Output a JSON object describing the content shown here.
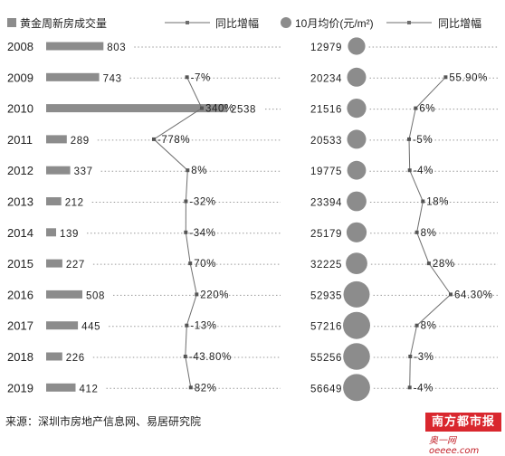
{
  "chart_data": {
    "type": "bar",
    "legend": [
      {
        "label": "黄金周新房成交量",
        "marker": "square"
      },
      {
        "label": "同比增幅",
        "marker": "line"
      },
      {
        "label": "10月均价(元/m²)",
        "marker": "circle"
      },
      {
        "label": "同比增幅",
        "marker": "line"
      }
    ],
    "categories": [
      "2008",
      "2009",
      "2010",
      "2011",
      "2012",
      "2013",
      "2014",
      "2015",
      "2016",
      "2017",
      "2018",
      "2019"
    ],
    "volume": {
      "values": [
        803,
        743,
        2538,
        289,
        337,
        212,
        139,
        227,
        508,
        445,
        226,
        412
      ],
      "labels": [
        "803",
        "743",
        "2538",
        "289",
        "337",
        "212",
        "139",
        "227",
        "508",
        "445",
        "226",
        "412"
      ]
    },
    "volume_yoy": {
      "values": [
        null,
        -7,
        340,
        -778,
        8,
        -32,
        -34,
        70,
        220,
        -13,
        -43.8,
        82
      ],
      "labels": [
        "",
        "-7%",
        "340%",
        "-778%",
        "8%",
        "-32%",
        "-34%",
        "70%",
        "220%",
        "-13%",
        "-43.80%",
        "82%"
      ]
    },
    "price": {
      "values": [
        12979,
        20234,
        21516,
        20533,
        19775,
        23394,
        25179,
        32225,
        52935,
        57216,
        55256,
        56649
      ],
      "labels": [
        "12979",
        "20234",
        "21516",
        "20533",
        "19775",
        "23394",
        "25179",
        "32225",
        "52935",
        "57216",
        "55256",
        "56649"
      ]
    },
    "price_yoy": {
      "values": [
        null,
        55.9,
        6,
        -5,
        -4,
        18,
        8,
        28,
        64.3,
        8,
        -3,
        -4
      ],
      "labels": [
        "",
        "55.90%",
        "6%",
        "-5%",
        "-4%",
        "18%",
        "8%",
        "28%",
        "64.30%",
        "8%",
        "-3%",
        "-4%"
      ]
    },
    "source": "来源：深圳市房地产信息网、易居研究院",
    "colors": {
      "bar": "#8c8c8c",
      "circle": "#8c8c8c",
      "line": "#6e6e6e",
      "grid": "#9a9a9a"
    }
  },
  "watermark": {
    "brand": "南方都市报",
    "site": "奥一网 oeeee.com"
  }
}
